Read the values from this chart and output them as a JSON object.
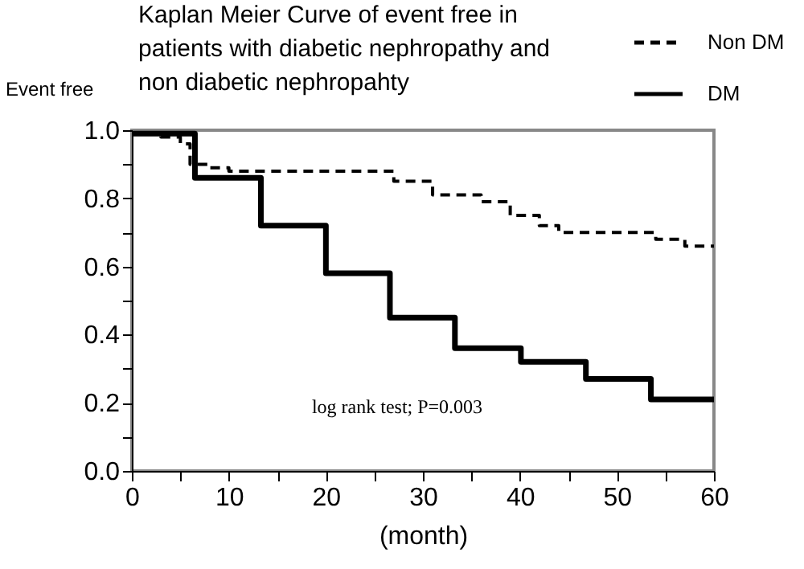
{
  "chart_data": {
    "type": "step",
    "title": [
      "Kaplan Meier Curve of event free in",
      "patients with diabetic nephropathy and",
      "non diabetic nephropahty"
    ],
    "xlabel": "(month)",
    "ylabel": "Event free",
    "xlim": [
      0,
      60
    ],
    "ylim": [
      0,
      1
    ],
    "xticks": [
      0,
      {
        "value": 5,
        "label": null
      },
      10,
      {
        "value": 15,
        "label": null
      },
      20,
      {
        "value": 25,
        "label": null
      },
      30,
      {
        "value": 35,
        "label": null
      },
      40,
      {
        "value": 45,
        "label": null
      },
      50,
      {
        "value": 55,
        "label": null
      },
      60
    ],
    "yticks": [
      {
        "value": 0,
        "label": "0.0"
      },
      {
        "value": 0.1,
        "label": null
      },
      0.2,
      {
        "value": 0.3,
        "label": null
      },
      0.4,
      {
        "value": 0.5,
        "label": null
      },
      0.6,
      {
        "value": 0.7,
        "label": null
      },
      0.8,
      {
        "value": 0.9,
        "label": null
      },
      {
        "value": 1,
        "label": "1.0"
      }
    ],
    "series": [
      {
        "name": "Non DM",
        "color": "#000000",
        "line_style": "dashed",
        "x": [
          0,
          3,
          5,
          6,
          8,
          10,
          27,
          31,
          36,
          39,
          42,
          44,
          54,
          57,
          60
        ],
        "values": [
          0.99,
          0.98,
          0.96,
          0.9,
          0.89,
          0.88,
          0.85,
          0.81,
          0.79,
          0.75,
          0.72,
          0.7,
          0.68,
          0.66,
          0.66
        ]
      },
      {
        "name": "DM",
        "color": "#000000",
        "line_style": "solid",
        "x": [
          0,
          6.5,
          13.3,
          20,
          26.6,
          33.3,
          40.1,
          46.8,
          53.5,
          60
        ],
        "values": [
          0.99,
          0.86,
          0.72,
          0.58,
          0.45,
          0.36,
          0.32,
          0.27,
          0.21,
          0.21
        ]
      }
    ],
    "annotations": [
      "log rank test; P=0.003"
    ],
    "legend": "top right",
    "grid": false,
    "marker": "none"
  }
}
